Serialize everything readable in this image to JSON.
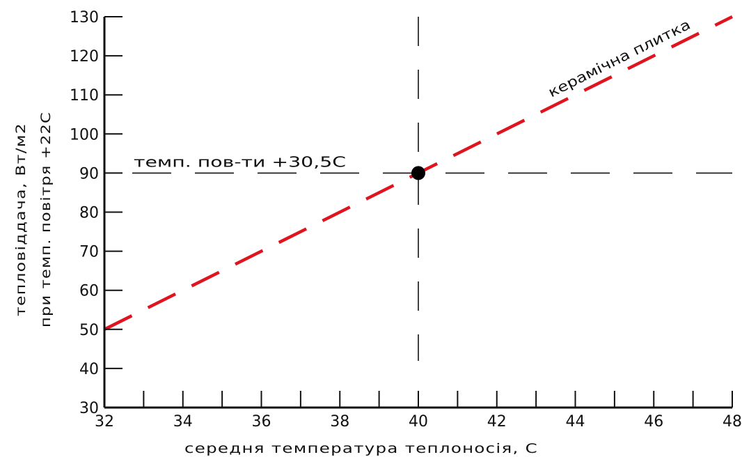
{
  "chart_data": {
    "type": "line",
    "title": "",
    "xlabel": "середня температура теплоносія, С",
    "ylabel_lines": [
      "тепловіддача, Вт/м2",
      "при темп. повітря +22С"
    ],
    "xlim": [
      32,
      48
    ],
    "ylim": [
      30,
      130
    ],
    "x_ticks": [
      32,
      34,
      36,
      38,
      40,
      42,
      44,
      46,
      48
    ],
    "x_minor_ticks": [
      33,
      35,
      37,
      39,
      41,
      43,
      45,
      47
    ],
    "y_ticks": [
      30,
      40,
      50,
      60,
      70,
      80,
      90,
      100,
      110,
      120,
      130
    ],
    "series": [
      {
        "name": "керамічна плитка",
        "x": [
          32,
          48
        ],
        "y": [
          50,
          130
        ],
        "color": "#e0141e",
        "style": "dashed"
      }
    ],
    "reference_lines": {
      "horizontal": {
        "y": 90,
        "label": "темп. пов-ти +30,5С"
      },
      "vertical": {
        "x": 40
      }
    },
    "highlight_point": {
      "x": 40,
      "y": 90
    },
    "grid": false,
    "legend": "none"
  }
}
